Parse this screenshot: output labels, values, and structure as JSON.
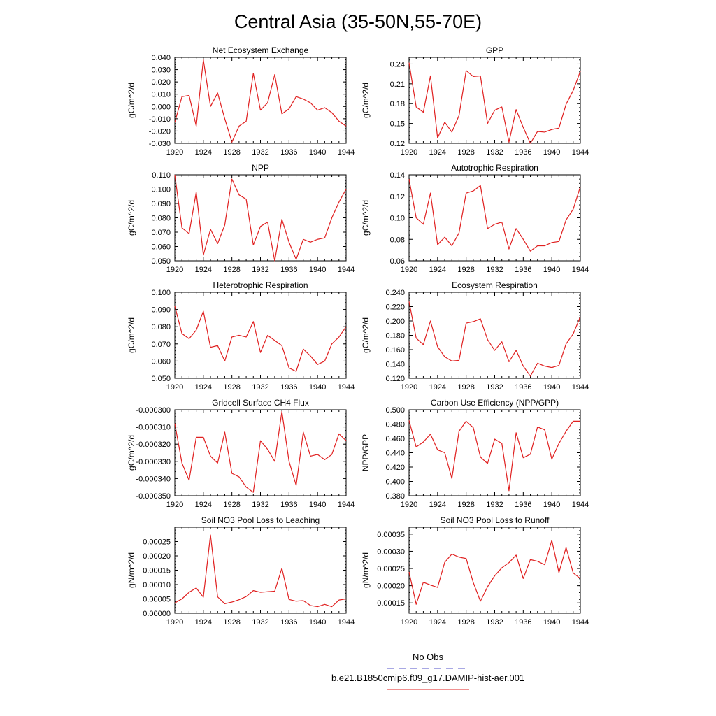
{
  "page_title": "Central Asia (35-50N,55-70E)",
  "legend": {
    "placement": "bottom-center",
    "entries": [
      {
        "label": "No Obs",
        "color": "#5050c8",
        "dashed": true
      },
      {
        "label": "b.e21.B1850cmip6.f09_g17.DAMIP-hist-aer.001",
        "color": "#e02020",
        "dashed": false
      }
    ]
  },
  "chart_data": [
    {
      "type": "line",
      "title": "Net Ecosystem Exchange",
      "ylabel": "gC/m^2/d",
      "xlim": [
        1920,
        1944
      ],
      "ylim": [
        -0.03,
        0.04
      ],
      "xticks": [
        "1920",
        "1924",
        "1928",
        "1932",
        "1936",
        "1940",
        "1944"
      ],
      "yticks": [
        "-0.030",
        "-0.020",
        "-0.010",
        "0.000",
        "0.010",
        "0.020",
        "0.030",
        "0.040"
      ],
      "series": [
        {
          "color": "#e02020",
          "x": [
            1920,
            1921,
            1922,
            1923,
            1924,
            1925,
            1926,
            1927,
            1928,
            1929,
            1930,
            1931,
            1932,
            1933,
            1934,
            1935,
            1936,
            1937,
            1938,
            1939,
            1940,
            1941,
            1942,
            1943,
            1944
          ],
          "values": [
            -0.013,
            0.008,
            0.009,
            -0.016,
            0.038,
            0.0,
            0.011,
            -0.01,
            -0.029,
            -0.016,
            -0.012,
            0.027,
            -0.003,
            0.003,
            0.026,
            -0.006,
            -0.002,
            0.008,
            0.006,
            0.003,
            -0.003,
            -0.001,
            -0.005,
            -0.012,
            -0.016
          ]
        }
      ]
    },
    {
      "type": "line",
      "title": "GPP",
      "ylabel": "gC/m^2/d",
      "xlim": [
        1920,
        1944
      ],
      "ylim": [
        0.12,
        0.25
      ],
      "xticks": [
        "1920",
        "1924",
        "1928",
        "1932",
        "1936",
        "1940",
        "1944"
      ],
      "yticks": [
        "0.12",
        "0.15",
        "0.18",
        "0.21",
        "0.24"
      ],
      "series": [
        {
          "color": "#e02020",
          "x": [
            1920,
            1921,
            1922,
            1923,
            1924,
            1925,
            1926,
            1927,
            1928,
            1929,
            1930,
            1931,
            1932,
            1933,
            1934,
            1935,
            1936,
            1937,
            1938,
            1939,
            1940,
            1941,
            1942,
            1943,
            1944
          ],
          "values": [
            0.242,
            0.175,
            0.167,
            0.222,
            0.128,
            0.152,
            0.137,
            0.162,
            0.23,
            0.221,
            0.222,
            0.15,
            0.17,
            0.175,
            0.122,
            0.171,
            0.144,
            0.12,
            0.138,
            0.137,
            0.141,
            0.143,
            0.179,
            0.2,
            0.229
          ]
        }
      ]
    },
    {
      "type": "line",
      "title": "NPP",
      "ylabel": "gC/m^2/d",
      "xlim": [
        1920,
        1944
      ],
      "ylim": [
        0.05,
        0.11
      ],
      "xticks": [
        "1920",
        "1924",
        "1928",
        "1932",
        "1936",
        "1940",
        "1944"
      ],
      "yticks": [
        "0.050",
        "0.060",
        "0.070",
        "0.080",
        "0.090",
        "0.100",
        "0.110"
      ],
      "series": [
        {
          "color": "#e02020",
          "x": [
            1920,
            1921,
            1922,
            1923,
            1924,
            1925,
            1926,
            1927,
            1928,
            1929,
            1930,
            1931,
            1932,
            1933,
            1934,
            1935,
            1936,
            1937,
            1938,
            1939,
            1940,
            1941,
            1942,
            1943,
            1944
          ],
          "values": [
            0.11,
            0.073,
            0.069,
            0.098,
            0.054,
            0.072,
            0.062,
            0.075,
            0.107,
            0.096,
            0.093,
            0.061,
            0.074,
            0.077,
            0.05,
            0.079,
            0.063,
            0.051,
            0.065,
            0.063,
            0.065,
            0.066,
            0.08,
            0.091,
            0.1
          ]
        }
      ]
    },
    {
      "type": "line",
      "title": "Autotrophic Respiration",
      "ylabel": "gC/m^2/d",
      "xlim": [
        1920,
        1944
      ],
      "ylim": [
        0.06,
        0.14
      ],
      "xticks": [
        "1920",
        "1924",
        "1928",
        "1932",
        "1936",
        "1940",
        "1944"
      ],
      "yticks": [
        "0.06",
        "0.08",
        "0.10",
        "0.12",
        "0.14"
      ],
      "series": [
        {
          "color": "#e02020",
          "x": [
            1920,
            1921,
            1922,
            1923,
            1924,
            1925,
            1926,
            1927,
            1928,
            1929,
            1930,
            1931,
            1932,
            1933,
            1934,
            1935,
            1936,
            1937,
            1938,
            1939,
            1940,
            1941,
            1942,
            1943,
            1944
          ],
          "values": [
            0.136,
            0.1,
            0.094,
            0.123,
            0.075,
            0.082,
            0.074,
            0.086,
            0.123,
            0.125,
            0.13,
            0.09,
            0.094,
            0.096,
            0.071,
            0.09,
            0.08,
            0.069,
            0.074,
            0.074,
            0.077,
            0.078,
            0.098,
            0.108,
            0.129
          ]
        }
      ]
    },
    {
      "type": "line",
      "title": "Heterotrophic Respiration",
      "ylabel": "gC/m^2/d",
      "xlim": [
        1920,
        1944
      ],
      "ylim": [
        0.05,
        0.1
      ],
      "xticks": [
        "1920",
        "1924",
        "1928",
        "1932",
        "1936",
        "1940",
        "1944"
      ],
      "yticks": [
        "0.050",
        "0.060",
        "0.070",
        "0.080",
        "0.090",
        "0.100"
      ],
      "series": [
        {
          "color": "#e02020",
          "x": [
            1920,
            1921,
            1922,
            1923,
            1924,
            1925,
            1926,
            1927,
            1928,
            1929,
            1930,
            1931,
            1932,
            1933,
            1934,
            1935,
            1936,
            1937,
            1938,
            1939,
            1940,
            1941,
            1942,
            1943,
            1944
          ],
          "values": [
            0.092,
            0.076,
            0.073,
            0.078,
            0.089,
            0.068,
            0.069,
            0.06,
            0.074,
            0.075,
            0.074,
            0.083,
            0.065,
            0.075,
            0.072,
            0.069,
            0.056,
            0.054,
            0.067,
            0.063,
            0.058,
            0.06,
            0.07,
            0.074,
            0.08
          ]
        }
      ]
    },
    {
      "type": "line",
      "title": "Ecosystem Respiration",
      "ylabel": "gC/m^2/d",
      "xlim": [
        1920,
        1944
      ],
      "ylim": [
        0.12,
        0.24
      ],
      "xticks": [
        "1920",
        "1924",
        "1928",
        "1932",
        "1936",
        "1940",
        "1944"
      ],
      "yticks": [
        "0.120",
        "0.140",
        "0.160",
        "0.180",
        "0.200",
        "0.220",
        "0.240"
      ],
      "series": [
        {
          "color": "#e02020",
          "x": [
            1920,
            1921,
            1922,
            1923,
            1924,
            1925,
            1926,
            1927,
            1928,
            1929,
            1930,
            1931,
            1932,
            1933,
            1934,
            1935,
            1936,
            1937,
            1938,
            1939,
            1940,
            1941,
            1942,
            1943,
            1944
          ],
          "values": [
            0.227,
            0.176,
            0.167,
            0.2,
            0.164,
            0.15,
            0.144,
            0.145,
            0.197,
            0.199,
            0.203,
            0.174,
            0.159,
            0.171,
            0.143,
            0.159,
            0.137,
            0.123,
            0.141,
            0.137,
            0.135,
            0.138,
            0.168,
            0.182,
            0.206
          ]
        }
      ]
    },
    {
      "type": "line",
      "title": "Gridcell Surface CH4 Flux",
      "ylabel": "gC/m^2/d",
      "xlim": [
        1920,
        1944
      ],
      "ylim": [
        -0.00035,
        -0.0003
      ],
      "xticks": [
        "1920",
        "1924",
        "1928",
        "1932",
        "1936",
        "1940",
        "1944"
      ],
      "yticks": [
        "-0.000350",
        "-0.000340",
        "-0.000330",
        "-0.000320",
        "-0.000310",
        "-0.000300"
      ],
      "series": [
        {
          "color": "#e02020",
          "x": [
            1920,
            1921,
            1922,
            1923,
            1924,
            1925,
            1926,
            1927,
            1928,
            1929,
            1930,
            1931,
            1932,
            1933,
            1934,
            1935,
            1936,
            1937,
            1938,
            1939,
            1940,
            1941,
            1942,
            1943,
            1944
          ],
          "values": [
            -0.000308,
            -0.000331,
            -0.000341,
            -0.000316,
            -0.000316,
            -0.000327,
            -0.000331,
            -0.000313,
            -0.000337,
            -0.000339,
            -0.000345,
            -0.000348,
            -0.000318,
            -0.000323,
            -0.00033,
            -0.000301,
            -0.00033,
            -0.000344,
            -0.000313,
            -0.000327,
            -0.000326,
            -0.000329,
            -0.000326,
            -0.000314,
            -0.000318
          ]
        }
      ]
    },
    {
      "type": "line",
      "title": "Carbon Use Efficiency (NPP/GPP)",
      "ylabel": "NPP/GPP",
      "xlim": [
        1920,
        1944
      ],
      "ylim": [
        0.38,
        0.5
      ],
      "xticks": [
        "1920",
        "1924",
        "1928",
        "1932",
        "1936",
        "1940",
        "1944"
      ],
      "yticks": [
        "0.380",
        "0.400",
        "0.420",
        "0.440",
        "0.460",
        "0.480",
        "0.500"
      ],
      "series": [
        {
          "color": "#e02020",
          "x": [
            1920,
            1921,
            1922,
            1923,
            1924,
            1925,
            1926,
            1927,
            1928,
            1929,
            1930,
            1931,
            1932,
            1933,
            1934,
            1935,
            1936,
            1937,
            1938,
            1939,
            1940,
            1941,
            1942,
            1943,
            1944
          ],
          "values": [
            0.485,
            0.448,
            0.455,
            0.466,
            0.444,
            0.44,
            0.404,
            0.47,
            0.484,
            0.475,
            0.434,
            0.425,
            0.459,
            0.453,
            0.387,
            0.468,
            0.433,
            0.438,
            0.476,
            0.472,
            0.431,
            0.453,
            0.47,
            0.484,
            0.484
          ]
        }
      ]
    },
    {
      "type": "line",
      "title": "Soil NO3 Pool Loss to Leaching",
      "ylabel": "gN/m^2/d",
      "xlim": [
        1920,
        1944
      ],
      "ylim": [
        0,
        0.0003
      ],
      "xticks": [
        "1920",
        "1924",
        "1928",
        "1932",
        "1936",
        "1940",
        "1944"
      ],
      "yticks": [
        "0.00000",
        "0.00005",
        "0.00010",
        "0.00015",
        "0.00020",
        "0.00025"
      ],
      "series": [
        {
          "color": "#e02020",
          "x": [
            1920,
            1921,
            1922,
            1923,
            1924,
            1925,
            1926,
            1927,
            1928,
            1929,
            1930,
            1931,
            1932,
            1933,
            1934,
            1935,
            1936,
            1937,
            1938,
            1939,
            1940,
            1941,
            1942,
            1943,
            1944
          ],
          "values": [
            3.6e-05,
            5e-05,
            7.3e-05,
            8.8e-05,
            5.6e-05,
            0.000273,
            5.7e-05,
            3.3e-05,
            3.9e-05,
            4.7e-05,
            5.8e-05,
            7.9e-05,
            7.3e-05,
            7.5e-05,
            7.7e-05,
            0.000157,
            4.8e-05,
            4.2e-05,
            4.4e-05,
            2.7e-05,
            2.3e-05,
            3.1e-05,
            2.3e-05,
            4.6e-05,
            5e-05
          ]
        }
      ]
    },
    {
      "type": "line",
      "title": "Soil NO3 Pool Loss to Runoff",
      "ylabel": "gN/m^2/d",
      "xlim": [
        1920,
        1944
      ],
      "ylim": [
        0.00012,
        0.00037
      ],
      "xticks": [
        "1920",
        "1924",
        "1928",
        "1932",
        "1936",
        "1940",
        "1944"
      ],
      "yticks": [
        "0.00015",
        "0.00020",
        "0.00025",
        "0.00030",
        "0.00035"
      ],
      "series": [
        {
          "color": "#e02020",
          "x": [
            1920,
            1921,
            1922,
            1923,
            1924,
            1925,
            1926,
            1927,
            1928,
            1929,
            1930,
            1931,
            1932,
            1933,
            1934,
            1935,
            1936,
            1937,
            1938,
            1939,
            1940,
            1941,
            1942,
            1943,
            1944
          ],
          "values": [
            0.00024,
            0.000146,
            0.00021,
            0.000202,
            0.000195,
            0.000268,
            0.000292,
            0.000283,
            0.000279,
            0.000209,
            0.000155,
            0.000197,
            0.000229,
            0.000252,
            0.000267,
            0.000289,
            0.000221,
            0.000276,
            0.000271,
            0.000261,
            0.000332,
            0.000238,
            0.000311,
            0.000237,
            0.000221
          ]
        }
      ]
    }
  ]
}
